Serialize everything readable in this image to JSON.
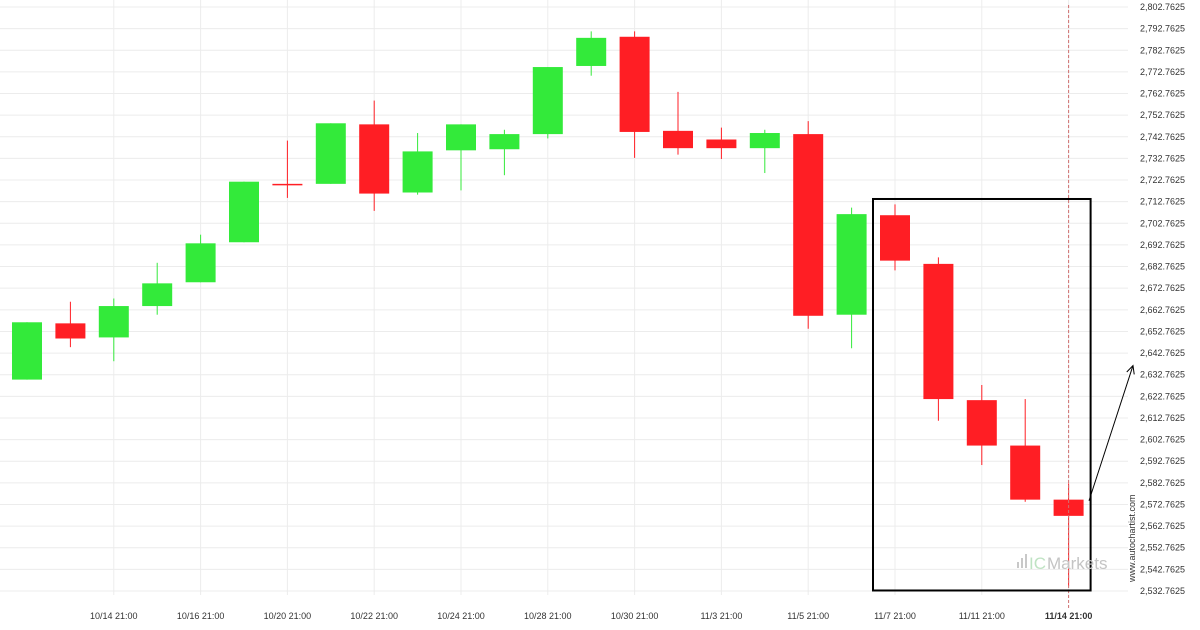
{
  "chart_data": {
    "type": "candlestick",
    "y_axis": {
      "min": 2527.7625,
      "max": 2802.7625,
      "tick_labels": [
        "2,802.7625",
        "2,792.7625",
        "2,782.7625",
        "2,772.7625",
        "2,762.7625",
        "2,752.7625",
        "2,742.7625",
        "2,732.7625",
        "2,722.7625",
        "2,712.7625",
        "2,702.7625",
        "2,692.7625",
        "2,682.7625",
        "2,672.7625",
        "2,662.7625",
        "2,652.7625",
        "2,642.7625",
        "2,632.7625",
        "2,622.7625",
        "2,612.7625",
        "2,602.7625",
        "2,592.7625",
        "2,582.7625",
        "2,572.7625",
        "2,562.7625",
        "2,552.7625",
        "2,542.7625",
        "2,532.7625"
      ],
      "tick_values": [
        2802.7625,
        2792.7625,
        2782.7625,
        2772.7625,
        2762.7625,
        2752.7625,
        2742.7625,
        2732.7625,
        2722.7625,
        2712.7625,
        2702.7625,
        2692.7625,
        2682.7625,
        2672.7625,
        2662.7625,
        2652.7625,
        2642.7625,
        2632.7625,
        2622.7625,
        2612.7625,
        2602.7625,
        2592.7625,
        2582.7625,
        2572.7625,
        2562.7625,
        2552.7625,
        2542.7625,
        2532.7625
      ],
      "position": "right"
    },
    "x_axis": {
      "labels": [
        {
          "index": 2,
          "text": "10/14 21:00"
        },
        {
          "index": 4,
          "text": "10/16 21:00"
        },
        {
          "index": 6,
          "text": "10/20 21:00"
        },
        {
          "index": 8,
          "text": "10/22 21:00"
        },
        {
          "index": 10,
          "text": "10/24 21:00"
        },
        {
          "index": 12,
          "text": "10/28 21:00"
        },
        {
          "index": 14,
          "text": "10/30 21:00"
        },
        {
          "index": 16,
          "text": "11/3 21:00"
        },
        {
          "index": 18,
          "text": "11/5 21:00"
        },
        {
          "index": 20,
          "text": "11/7 21:00"
        },
        {
          "index": 22,
          "text": "11/11 21:00"
        },
        {
          "index": 24,
          "text": "11/14 21:00",
          "bold": true
        }
      ]
    },
    "candles": [
      {
        "open": 2630.5,
        "high": 2657.0,
        "low": 2630.5,
        "close": 2657.0
      },
      {
        "open": 2656.5,
        "high": 2666.5,
        "low": 2645.5,
        "close": 2649.5
      },
      {
        "open": 2650.0,
        "high": 2668.0,
        "low": 2639.0,
        "close": 2664.5
      },
      {
        "open": 2664.5,
        "high": 2684.5,
        "low": 2660.5,
        "close": 2675.0
      },
      {
        "open": 2675.5,
        "high": 2697.5,
        "low": 2675.5,
        "close": 2693.5
      },
      {
        "open": 2694.0,
        "high": 2722.0,
        "low": 2694.0,
        "close": 2722.0
      },
      {
        "open": 2721.0,
        "high": 2741.0,
        "low": 2714.5,
        "close": 2720.5
      },
      {
        "open": 2721.0,
        "high": 2749.0,
        "low": 2721.0,
        "close": 2749.0
      },
      {
        "open": 2748.5,
        "high": 2759.5,
        "low": 2708.5,
        "close": 2716.5
      },
      {
        "open": 2717.0,
        "high": 2744.5,
        "low": 2716.0,
        "close": 2736.0
      },
      {
        "open": 2736.5,
        "high": 2748.5,
        "low": 2718.0,
        "close": 2748.5
      },
      {
        "open": 2737.0,
        "high": 2746.0,
        "low": 2725.0,
        "close": 2744.0
      },
      {
        "open": 2744.0,
        "high": 2775.0,
        "low": 2742.0,
        "close": 2775.0
      },
      {
        "open": 2775.5,
        "high": 2791.5,
        "low": 2771.0,
        "close": 2788.5
      },
      {
        "open": 2789.0,
        "high": 2791.5,
        "low": 2733.0,
        "close": 2745.0
      },
      {
        "open": 2745.5,
        "high": 2763.5,
        "low": 2734.5,
        "close": 2737.5
      },
      {
        "open": 2741.5,
        "high": 2747.0,
        "low": 2732.5,
        "close": 2737.5
      },
      {
        "open": 2737.5,
        "high": 2746.0,
        "low": 2726.0,
        "close": 2744.5
      },
      {
        "open": 2744.0,
        "high": 2750.0,
        "low": 2654.0,
        "close": 2660.0
      },
      {
        "open": 2660.5,
        "high": 2710.0,
        "low": 2645.0,
        "close": 2707.0
      },
      {
        "open": 2706.5,
        "high": 2711.5,
        "low": 2681.0,
        "close": 2685.5
      },
      {
        "open": 2684.0,
        "high": 2687.0,
        "low": 2611.5,
        "close": 2621.5
      },
      {
        "open": 2621.0,
        "high": 2628.0,
        "low": 2591.0,
        "close": 2600.0
      },
      {
        "open": 2600.0,
        "high": 2621.5,
        "low": 2574.0,
        "close": 2575.0
      },
      {
        "open": 2575.0,
        "high": 2582.5,
        "low": 2535.0,
        "close": 2567.5
      }
    ],
    "colors": {
      "bull": "#33ea3a",
      "bear": "#ff1e24",
      "box": "#000000",
      "dash": "#d07070"
    },
    "highlight_box": {
      "start_index": 20,
      "end_index": 24,
      "top": 2714.0,
      "bottom": 2533.0
    },
    "arrow": {
      "from": 2574.5,
      "to": 2637.0,
      "direction": "up"
    }
  },
  "watermark": {
    "site": "www.autochartist.com",
    "brand_ic": "IC",
    "brand_rest": "Markets"
  }
}
